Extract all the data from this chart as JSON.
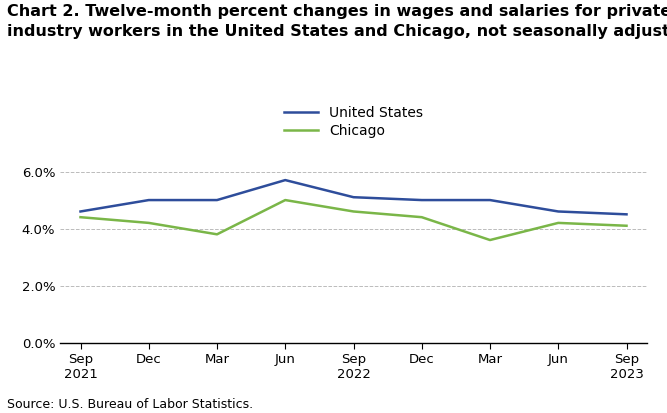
{
  "title_line1": "Chart 2. Twelve-month percent changes in wages and salaries for private",
  "title_line2": "industry workers in the United States and Chicago, not seasonally adjusted",
  "x_labels": [
    "Sep\n2021",
    "Dec",
    "Mar",
    "Jun",
    "Sep\n2022",
    "Dec",
    "Mar",
    "Jun",
    "Sep\n2023"
  ],
  "us_values": [
    4.6,
    5.0,
    5.0,
    5.7,
    5.1,
    5.0,
    5.0,
    4.6,
    4.5
  ],
  "chicago_values": [
    4.4,
    4.2,
    3.8,
    5.0,
    4.6,
    4.4,
    3.6,
    4.2,
    4.1
  ],
  "us_color": "#2E4D9B",
  "chicago_color": "#7AB648",
  "us_label": "United States",
  "chicago_label": "Chicago",
  "grid_color": "#BBBBBB",
  "source_text": "Source: U.S. Bureau of Labor Statistics.",
  "title_fontsize": 11.5,
  "legend_fontsize": 10,
  "tick_fontsize": 9.5,
  "source_fontsize": 9
}
